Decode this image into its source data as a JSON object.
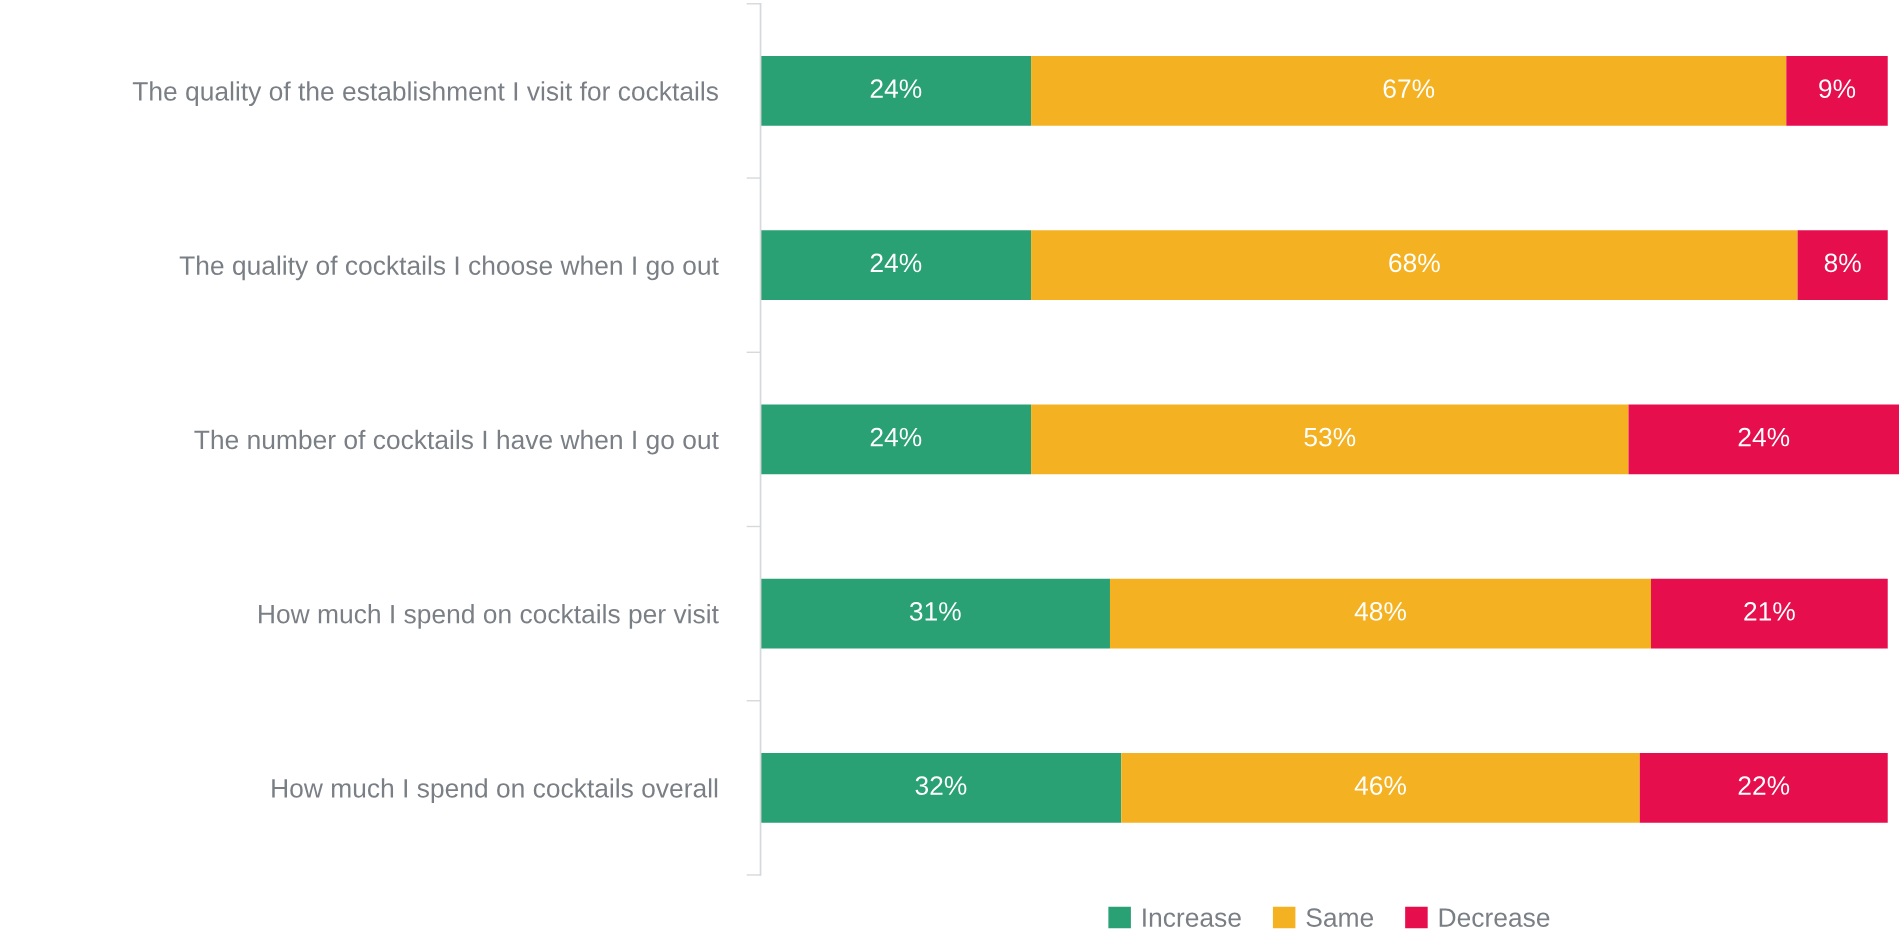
{
  "chart_data": {
    "type": "bar",
    "orientation": "horizontal",
    "stacked": true,
    "categories": [
      "The quality of the establishment I visit for cocktails",
      "The quality of cocktails I choose when I go out",
      "The number of cocktails I have when I go out",
      "How much I spend on cocktails per visit",
      "How much I spend on cocktails overall"
    ],
    "series": [
      {
        "name": "Increase",
        "color": "#29a174",
        "values": [
          24,
          24,
          24,
          31,
          32
        ],
        "value_labels": [
          "24%",
          "24%",
          "24%",
          "31%",
          "32%"
        ]
      },
      {
        "name": "Same",
        "color": "#f4b223",
        "values": [
          67,
          68,
          53,
          48,
          46
        ],
        "value_labels": [
          "67%",
          "68%",
          "53%",
          "48%",
          "46%"
        ]
      },
      {
        "name": "Decrease",
        "color": "#e60e4d",
        "values": [
          9,
          8,
          24,
          21,
          22
        ],
        "value_labels": [
          "9%",
          "8%",
          "24%",
          "21%",
          "22%"
        ]
      }
    ],
    "legend": "bottom",
    "grid": false,
    "tick_labels": "y"
  }
}
